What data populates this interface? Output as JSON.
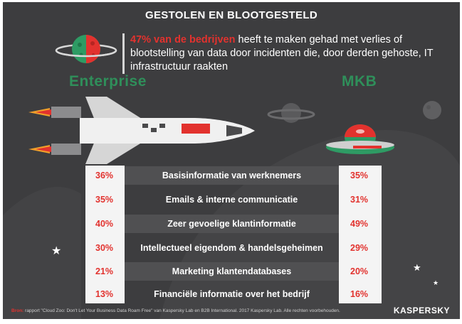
{
  "title": "GESTOLEN EN BLOOTGESTELD",
  "lead": {
    "highlight": "47% van de bedrijven",
    "text": " heeft te maken gehad met verlies of blootstelling van data door incidenten die, door derden gehoste, IT infrastructuur raakten"
  },
  "columns": {
    "left": "Enterprise",
    "right": "MKB"
  },
  "rows": [
    {
      "label": "Basisinformatie van werknemers",
      "enterprise": "36%",
      "mkb": "35%"
    },
    {
      "label": "Emails & interne communicatie",
      "enterprise": "35%",
      "mkb": "31%"
    },
    {
      "label": "Zeer gevoelige klantinformatie",
      "enterprise": "40%",
      "mkb": "49%"
    },
    {
      "label": "Intellectueel eigendom & handelsgeheimen",
      "enterprise": "30%",
      "mkb": "29%"
    },
    {
      "label": "Marketing klantendatabases",
      "enterprise": "21%",
      "mkb": "20%"
    },
    {
      "label": "Financiële informatie over het bedrijf",
      "enterprise": "13%",
      "mkb": "16%"
    }
  ],
  "footer": {
    "source_label": "Bron:",
    "text": " rapport \"Cloud Zoo: Don't Let Your Business Data Roam Free\" van Kaspersky Lab en B2B International. 2017 Kaspersky Lab. Alle rechten voorbehouden."
  },
  "brand": "KASPERSKY",
  "colors": {
    "accent_red": "#e2322e",
    "green": "#2f8f5a",
    "background": "#3d3d3f"
  }
}
